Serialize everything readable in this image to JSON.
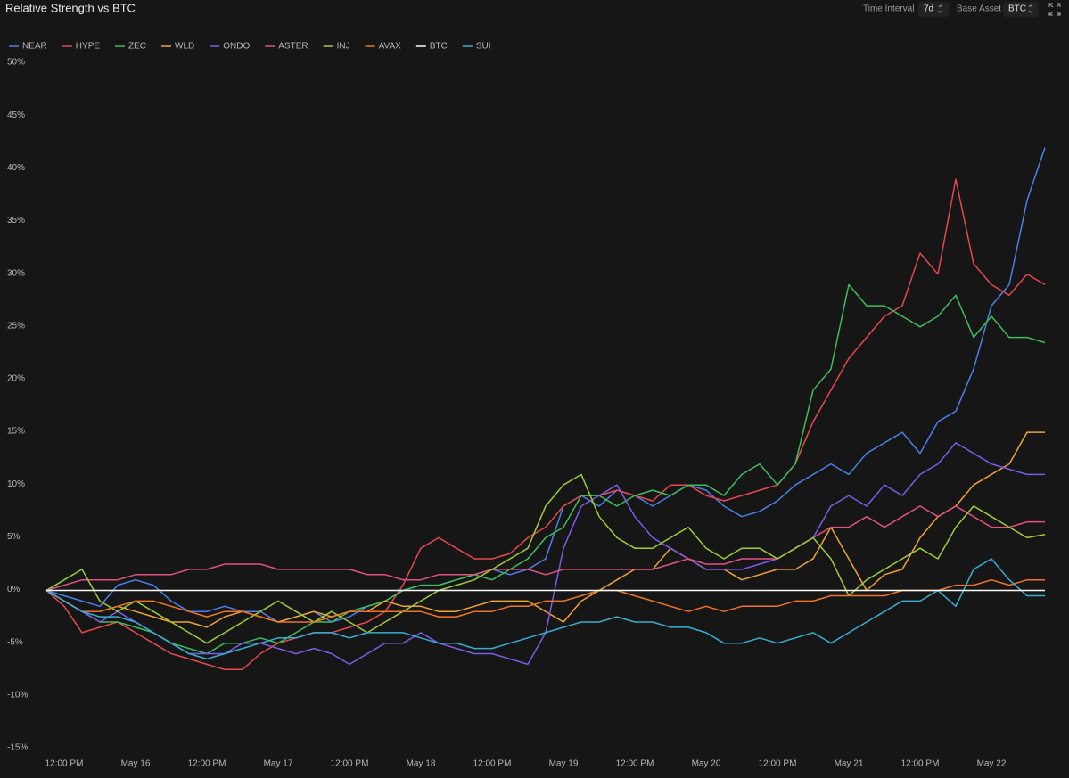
{
  "toolbar": {
    "time_interval_label": "Time Interval",
    "time_interval": "7d",
    "base_asset_label": "Base Asset",
    "base_asset": "BTC"
  },
  "chart_data": {
    "type": "line",
    "title": "Relative Strength vs BTC",
    "categories": [
      null,
      "12:00 PM",
      null,
      null,
      null,
      "May 16",
      null,
      null,
      null,
      "12:00 PM",
      null,
      null,
      null,
      "May 17",
      null,
      null,
      null,
      "12:00 PM",
      null,
      null,
      null,
      "May 18",
      null,
      null,
      null,
      "12:00 PM",
      null,
      null,
      null,
      "May 19",
      null,
      null,
      null,
      "12:00 PM",
      null,
      null,
      null,
      "May 20",
      null,
      null,
      null,
      "12:00 PM",
      null,
      null,
      null,
      "May 21",
      null,
      null,
      null,
      "12:00 PM",
      null,
      null,
      null,
      "May 22",
      null,
      null,
      null
    ],
    "ylim": [
      -15,
      50
    ],
    "yticks": [
      {
        "value": 50,
        "label": "50%"
      },
      {
        "value": 45,
        "label": "45%"
      },
      {
        "value": 40,
        "label": "40%"
      },
      {
        "value": 35,
        "label": "35%"
      },
      {
        "value": 30,
        "label": "30%"
      },
      {
        "value": 25,
        "label": "25%"
      },
      {
        "value": 20,
        "label": "20%"
      },
      {
        "value": 15,
        "label": "15%"
      },
      {
        "value": 10,
        "label": "10%"
      },
      {
        "value": 5,
        "label": "5%"
      },
      {
        "value": 0,
        "label": "0%"
      },
      {
        "value": -5,
        "label": "-5%"
      },
      {
        "value": -10,
        "label": "-10%"
      },
      {
        "value": -15,
        "label": "-15%"
      }
    ],
    "grid": false,
    "series": [
      {
        "name": "NEAR",
        "color": "#4a80e8",
        "values": [
          0,
          -0.5,
          -1,
          -1.5,
          0.5,
          1,
          0.5,
          -1,
          -2,
          -2,
          -1.5,
          -2,
          -2,
          -3,
          -2.5,
          -2,
          -3,
          -2.5,
          -1.5,
          -1,
          0,
          0.5,
          0.5,
          1,
          1.5,
          2,
          1.5,
          2,
          3,
          8,
          9,
          8,
          9.5,
          9,
          8,
          9,
          10,
          9.5,
          8,
          7,
          7.5,
          8.5,
          10,
          11,
          12,
          11,
          13,
          14,
          15,
          13,
          16,
          17,
          21,
          27,
          29,
          37,
          42
        ]
      },
      {
        "name": "HYPE",
        "color": "#e5484d",
        "values": [
          0,
          -1.5,
          -4,
          -3.5,
          -3,
          -4,
          -5,
          -6,
          -6.5,
          -7,
          -7.5,
          -7.5,
          -6,
          -5,
          -4.5,
          -4,
          -4,
          -3.5,
          -3,
          -2,
          0.5,
          4,
          5,
          4,
          3,
          3,
          3.5,
          5,
          6,
          8,
          9,
          9,
          9.5,
          9,
          8.5,
          10,
          10,
          9,
          8.5,
          9,
          9.5,
          10,
          12,
          16,
          19,
          22,
          24,
          26,
          27,
          32,
          30,
          39,
          31,
          29,
          28,
          30,
          29
        ]
      },
      {
        "name": "ZEC",
        "color": "#3dbd5c",
        "values": [
          0,
          -1,
          -2,
          -3,
          -3,
          -3.5,
          -4,
          -5,
          -5.5,
          -6,
          -5,
          -5,
          -4.5,
          -5,
          -4,
          -3,
          -3,
          -2,
          -1.5,
          -1,
          0,
          0.5,
          0.5,
          1,
          1.5,
          1,
          2,
          3,
          5,
          6,
          9,
          9,
          8,
          9,
          9.5,
          9,
          10,
          10,
          9,
          11,
          12,
          10,
          12,
          19,
          21,
          29,
          27,
          27,
          26,
          25,
          26,
          28,
          24,
          26,
          24,
          24,
          23.5
        ]
      },
      {
        "name": "WLD",
        "color": "#f0a235",
        "values": [
          0,
          -1,
          -2,
          -2,
          -1.5,
          -2,
          -2.5,
          -3,
          -3,
          -3.5,
          -2.5,
          -2,
          -2.5,
          -3,
          -2.5,
          -2,
          -2.5,
          -2,
          -2,
          -1,
          -1.5,
          -1.5,
          -2,
          -2,
          -1.5,
          -1,
          -1,
          -1,
          -2,
          -3,
          -1,
          0,
          1,
          2,
          2,
          4,
          3,
          2,
          2,
          1,
          1.5,
          2,
          2,
          3,
          6,
          3,
          0,
          1.5,
          2,
          5,
          7,
          8,
          10,
          11,
          12,
          15,
          15
        ]
      },
      {
        "name": "ONDO",
        "color": "#7c5ce6",
        "values": [
          0,
          -1,
          -2,
          -3,
          -2,
          -3,
          -4,
          -5,
          -6,
          -6,
          -6,
          -5,
          -5,
          -5.5,
          -6,
          -5.5,
          -6,
          -7,
          -6,
          -5,
          -5,
          -4,
          -5,
          -5.5,
          -6,
          -6,
          -6.5,
          -7,
          -4,
          4,
          8,
          9,
          10,
          7,
          5,
          4,
          3,
          2,
          2,
          2,
          2.5,
          3,
          4,
          5,
          8,
          9,
          8,
          10,
          9,
          11,
          12,
          14,
          13,
          12,
          11.5,
          11,
          11
        ]
      },
      {
        "name": "ASTER",
        "color": "#e2527e",
        "values": [
          0,
          0.5,
          1,
          1,
          1,
          1.5,
          1.5,
          1.5,
          2,
          2,
          2.5,
          2.5,
          2.5,
          2,
          2,
          2,
          2,
          2,
          1.5,
          1.5,
          1,
          1,
          1.5,
          1.5,
          1.5,
          2,
          2,
          2,
          1.5,
          2,
          2,
          2,
          2,
          2,
          2,
          2.5,
          3,
          2.5,
          2.5,
          3,
          3,
          3,
          4,
          5,
          6,
          6,
          7,
          6,
          7,
          8,
          7,
          8,
          7,
          6,
          6,
          6.5,
          6.5
        ]
      },
      {
        "name": "INJ",
        "color": "#9ccc38",
        "values": [
          0,
          1,
          2,
          -1,
          -2,
          -1,
          -2,
          -3,
          -4,
          -5,
          -4,
          -3,
          -2,
          -1,
          -2,
          -3,
          -2,
          -3,
          -4,
          -3,
          -2,
          -1,
          0,
          0.5,
          1,
          2,
          3,
          4,
          8,
          10,
          11,
          7,
          5,
          4,
          4,
          5,
          6,
          4,
          3,
          4,
          4,
          3,
          4,
          5,
          3,
          -0.5,
          1,
          2,
          3,
          4,
          3,
          6,
          8,
          7,
          6,
          5,
          5.3
        ]
      },
      {
        "name": "AVAX",
        "color": "#f07424",
        "values": [
          0,
          -1,
          -2,
          -2,
          -1.5,
          -1,
          -1,
          -1.5,
          -2,
          -2.5,
          -2,
          -2,
          -2.5,
          -3,
          -3,
          -3,
          -2.5,
          -2,
          -2,
          -2,
          -2,
          -2,
          -2.5,
          -2.5,
          -2,
          -2,
          -1.5,
          -1.5,
          -1,
          -1,
          -0.5,
          0,
          0,
          -0.5,
          -1,
          -1.5,
          -2,
          -1.5,
          -2,
          -1.5,
          -1.5,
          -1.5,
          -1,
          -1,
          -0.5,
          -0.5,
          -0.5,
          -0.5,
          0,
          0,
          0,
          0.5,
          0.5,
          1,
          0.5,
          1,
          1
        ]
      },
      {
        "name": "BTC",
        "color": "#ffffff",
        "values": [
          0,
          0,
          0,
          0,
          0,
          0,
          0,
          0,
          0,
          0,
          0,
          0,
          0,
          0,
          0,
          0,
          0,
          0,
          0,
          0,
          0,
          0,
          0,
          0,
          0,
          0,
          0,
          0,
          0,
          0,
          0,
          0,
          0,
          0,
          0,
          0,
          0,
          0,
          0,
          0,
          0,
          0,
          0,
          0,
          0,
          0,
          0,
          0,
          0,
          0,
          0,
          0,
          0,
          0,
          0,
          0,
          0
        ]
      },
      {
        "name": "SUI",
        "color": "#38aed2",
        "values": [
          0,
          -1,
          -2,
          -2.5,
          -2.5,
          -3,
          -4,
          -5,
          -6,
          -6.5,
          -6,
          -5.5,
          -5,
          -4.5,
          -4.5,
          -4,
          -4,
          -4.5,
          -4,
          -4,
          -4,
          -4.5,
          -5,
          -5,
          -5.5,
          -5.5,
          -5,
          -4.5,
          -4,
          -3.5,
          -3,
          -3,
          -2.5,
          -3,
          -3,
          -3.5,
          -3.5,
          -4,
          -5,
          -5,
          -4.5,
          -5,
          -4.5,
          -4,
          -5,
          -4,
          -3,
          -2,
          -1,
          -1,
          0,
          -1.5,
          2,
          3,
          1,
          -0.5,
          -0.5
        ]
      }
    ]
  }
}
